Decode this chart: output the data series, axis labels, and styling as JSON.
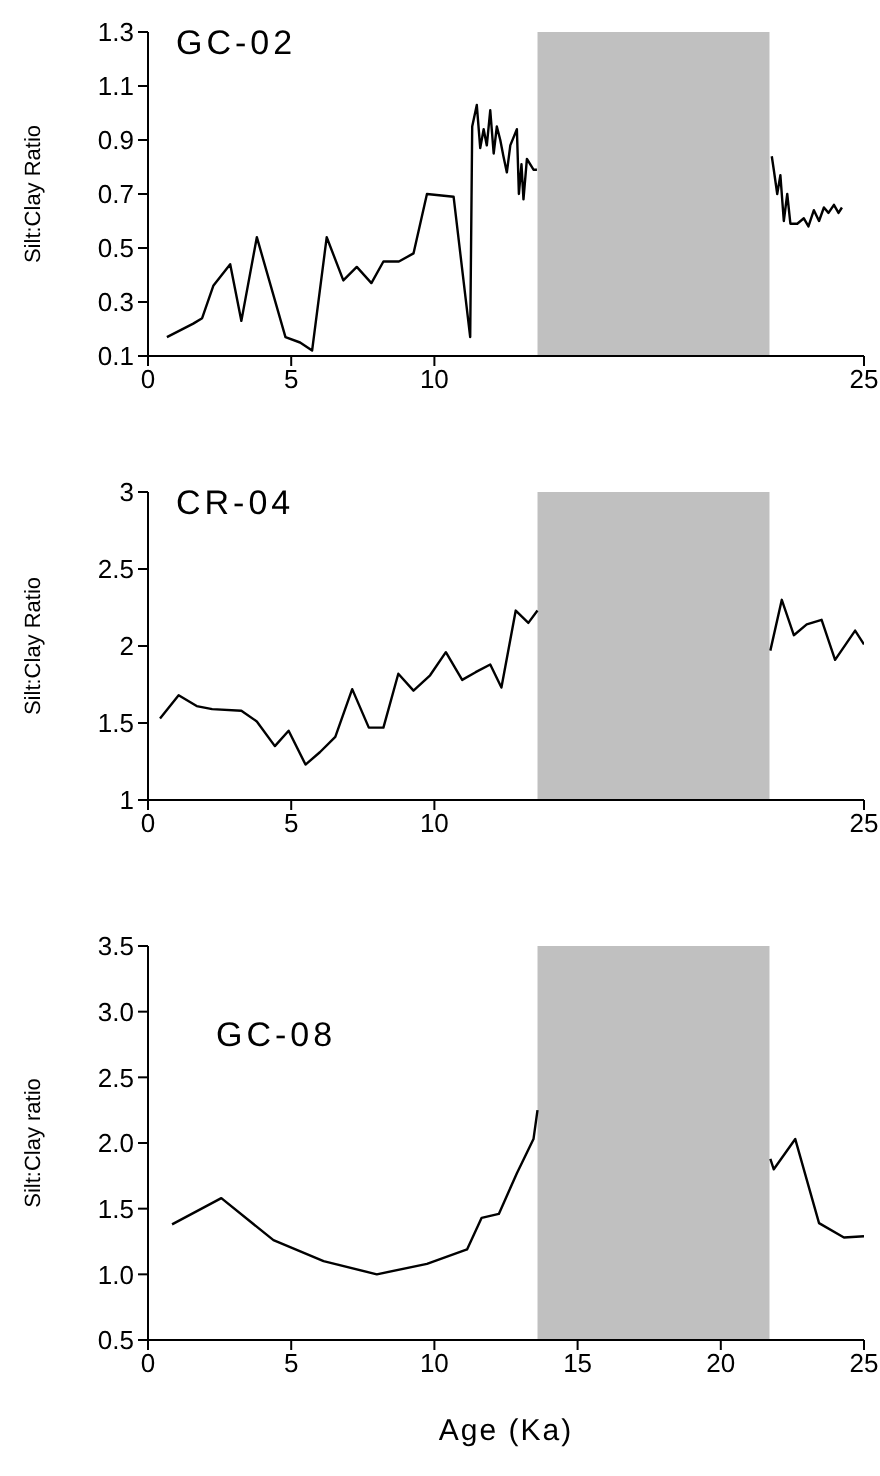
{
  "chart_data": [
    {
      "type": "line",
      "title": "GC-02",
      "ylabel": "Silt:Clay Ratio",
      "xlim": [
        0,
        25
      ],
      "xticks": [
        0,
        5,
        10,
        25
      ],
      "ylim": [
        0.1,
        1.3
      ],
      "yticks": [
        0.1,
        0.3,
        0.5,
        0.7,
        0.9,
        1.1,
        1.3
      ],
      "marker": "none",
      "line_style": "solid",
      "bands": [
        {
          "axis": "x",
          "from": 13.6,
          "to": 21.7,
          "color": "#c0c0c0"
        }
      ],
      "series": [
        {
          "color": "#000000",
          "x": [
            0.66,
            1.58,
            1.89,
            2.28,
            2.87,
            3.26,
            3.8,
            4.8,
            5.31,
            5.73,
            6.24,
            6.82,
            7.29,
            7.8,
            8.22,
            8.76,
            9.27,
            9.74,
            10.67,
            11.25,
            11.32,
            11.48,
            11.6,
            11.72,
            11.83,
            11.95,
            12.07,
            12.18,
            12.3,
            12.41,
            12.53,
            12.65,
            12.88,
            12.95,
            13.04,
            13.11,
            13.23,
            13.46,
            13.58,
            17,
            21.78,
            21.85,
            21.97,
            22.08,
            22.2,
            22.32,
            22.43,
            22.67,
            22.9,
            23.06,
            23.25,
            23.43,
            23.6,
            23.76,
            23.95,
            24.11,
            24.23
          ],
          "values": [
            0.17,
            0.22,
            0.24,
            0.36,
            0.44,
            0.23,
            0.54,
            0.17,
            0.15,
            0.12,
            0.54,
            0.38,
            0.43,
            0.37,
            0.45,
            0.45,
            0.48,
            0.7,
            0.69,
            0.17,
            0.95,
            1.03,
            0.87,
            0.94,
            0.88,
            1.01,
            0.85,
            0.95,
            0.9,
            0.84,
            0.78,
            0.88,
            0.94,
            0.7,
            0.81,
            0.68,
            0.83,
            0.79,
            0.79,
            null,
            0.84,
            0.79,
            0.7,
            0.77,
            0.6,
            0.7,
            0.59,
            0.59,
            0.61,
            0.58,
            0.64,
            0.6,
            0.65,
            0.63,
            0.66,
            0.63,
            0.65
          ]
        }
      ]
    },
    {
      "type": "line",
      "title": "CR-04",
      "ylabel": "Silt:Clay Ratio",
      "xlim": [
        0,
        25
      ],
      "xticks": [
        0,
        5,
        10,
        25
      ],
      "ylim": [
        1,
        3
      ],
      "yticks": [
        1,
        1.5,
        2,
        2.5,
        3
      ],
      "marker": "none",
      "line_style": "solid",
      "bands": [
        {
          "axis": "x",
          "from": 13.6,
          "to": 21.7,
          "color": "#c0c0c0"
        }
      ],
      "series": [
        {
          "color": "#000000",
          "x": [
            0.42,
            1.07,
            1.7,
            2.24,
            3.26,
            3.8,
            4.43,
            4.91,
            5.5,
            6.0,
            6.54,
            7.13,
            7.71,
            8.22,
            8.74,
            9.27,
            9.85,
            10.4,
            10.97,
            11.44,
            11.95,
            12.34,
            12.84,
            13.28,
            13.6,
            17,
            21.73,
            22.13,
            22.55,
            23.0,
            23.52,
            23.99,
            24.69,
            25
          ],
          "values": [
            1.53,
            1.68,
            1.61,
            1.59,
            1.58,
            1.51,
            1.35,
            1.45,
            1.23,
            1.31,
            1.41,
            1.72,
            1.47,
            1.47,
            1.82,
            1.71,
            1.81,
            1.96,
            1.78,
            1.83,
            1.88,
            1.73,
            2.23,
            2.15,
            2.23,
            null,
            1.97,
            2.3,
            2.07,
            2.14,
            2.17,
            1.91,
            2.1,
            2.01
          ]
        }
      ]
    },
    {
      "type": "line",
      "title": "GC-08",
      "ylabel": "Silt:Clay ratio",
      "xlabel": "Age (Ka)",
      "xlim": [
        0,
        25
      ],
      "xticks": [
        0,
        5,
        10,
        15,
        20,
        25
      ],
      "ylim": [
        0.5,
        3.5
      ],
      "yticks": [
        0.5,
        {
          "value": 1,
          "label": "1.0"
        },
        1.5,
        {
          "value": 2,
          "label": "2.0"
        },
        2.5,
        {
          "value": 3,
          "label": "3.0"
        },
        3.5
      ],
      "marker": "none",
      "line_style": "solid",
      "bands": [
        {
          "axis": "x",
          "from": 13.6,
          "to": 21.7,
          "color": "#c0c0c0"
        }
      ],
      "series": [
        {
          "color": "#000000",
          "x": [
            0.84,
            2.56,
            4.38,
            6.13,
            7.99,
            9.74,
            11.14,
            11.65,
            12.25,
            12.88,
            13.46,
            13.6,
            17,
            21.73,
            21.85,
            22.6,
            23.43,
            24.3,
            25
          ],
          "values": [
            1.38,
            1.58,
            1.26,
            1.1,
            1.0,
            1.08,
            1.19,
            1.43,
            1.46,
            1.77,
            2.03,
            2.25,
            null,
            1.88,
            1.8,
            2.03,
            1.39,
            1.28,
            1.29
          ]
        }
      ]
    }
  ]
}
